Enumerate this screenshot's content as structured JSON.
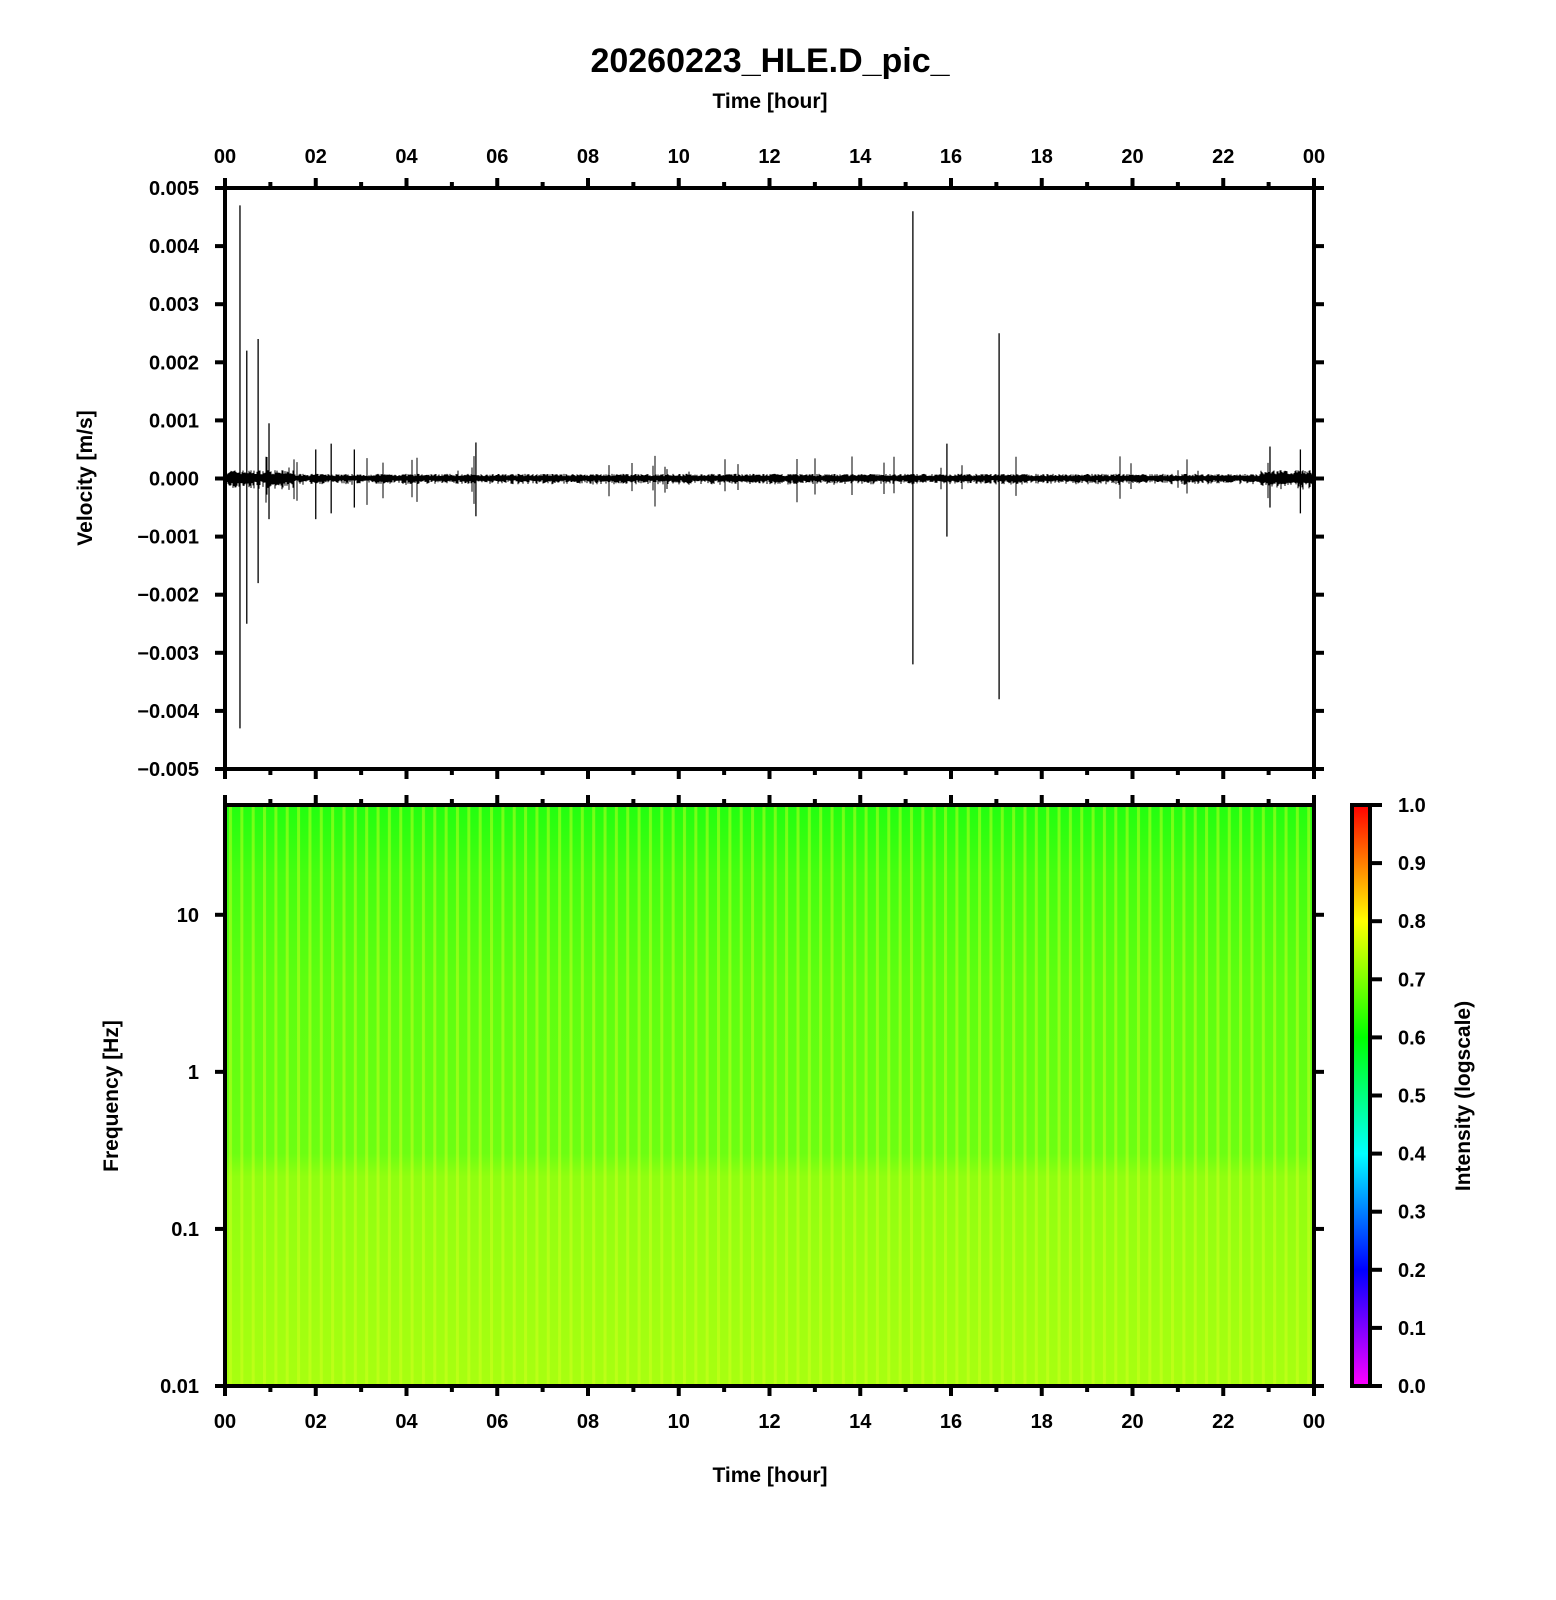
{
  "chart_data": [
    {
      "type": "line",
      "title": "20260223_HLE.D_pic_",
      "xlabel": "Time [hour]",
      "ylabel": "Velocity [m/s]",
      "xlim": [
        0,
        24
      ],
      "ylim": [
        -0.005,
        0.005
      ],
      "x_tick_labels": [
        "00",
        "02",
        "04",
        "06",
        "08",
        "10",
        "12",
        "14",
        "16",
        "18",
        "20",
        "22",
        "00"
      ],
      "y_tick_labels": [
        "0.005",
        "0.004",
        "0.003",
        "0.002",
        "0.001",
        "0.000",
        "−0.001",
        "−0.002",
        "−0.003",
        "−0.004",
        "−0.005"
      ],
      "y_ticks": [
        0.005,
        0.004,
        0.003,
        0.002,
        0.001,
        0,
        -0.001,
        -0.002,
        -0.003,
        -0.004,
        -0.005
      ],
      "grid": false,
      "line_color": "#000000",
      "events": [
        {
          "hour": 0.33,
          "max": 0.0047,
          "min": -0.0043
        },
        {
          "hour": 0.48,
          "max": 0.0022,
          "min": -0.0025
        },
        {
          "hour": 0.73,
          "max": 0.0024,
          "min": -0.0018
        },
        {
          "hour": 0.97,
          "max": 0.00095,
          "min": -0.0007
        },
        {
          "hour": 2.0,
          "max": 0.0005,
          "min": -0.0007
        },
        {
          "hour": 2.34,
          "max": 0.0006,
          "min": -0.0006
        },
        {
          "hour": 2.85,
          "max": 0.0005,
          "min": -0.0005
        },
        {
          "hour": 5.53,
          "max": 0.00062,
          "min": -0.00065
        },
        {
          "hour": 15.16,
          "max": 0.0046,
          "min": -0.0032
        },
        {
          "hour": 15.91,
          "max": 0.0006,
          "min": -0.001
        },
        {
          "hour": 17.06,
          "max": 0.0025,
          "min": -0.0038
        },
        {
          "hour": 23.03,
          "max": 0.00055,
          "min": -0.0005
        },
        {
          "hour": 23.7,
          "max": 0.0005,
          "min": -0.0006
        }
      ]
    },
    {
      "type": "heatmap",
      "xlabel": "Time [hour]",
      "ylabel": "Frequency [Hz]",
      "xlim": [
        0,
        24
      ],
      "ylim": [
        0.01,
        50
      ],
      "y_scale": "log",
      "y_ticks": [
        10,
        1,
        0.1,
        0.01
      ],
      "y_tick_labels": [
        "10",
        "1",
        "0.1",
        "0.01"
      ],
      "x_tick_labels": [
        "00",
        "02",
        "04",
        "06",
        "08",
        "10",
        "12",
        "14",
        "16",
        "18",
        "20",
        "22",
        "00"
      ],
      "intensity_bands": [
        {
          "freq_range": [
            10,
            50
          ],
          "intensity": 0.62
        },
        {
          "freq_range": [
            0.3,
            10
          ],
          "intensity": 0.66
        },
        {
          "freq_range": [
            0.01,
            0.3
          ],
          "intensity": 0.72
        }
      ],
      "colorbar": {
        "label": "Intensity (logscale)",
        "range": [
          0,
          1
        ],
        "tick_labels": [
          "1.0",
          "0.9",
          "0.8",
          "0.7",
          "0.6",
          "0.5",
          "0.4",
          "0.3",
          "0.2",
          "0.1",
          "0.0"
        ],
        "colors": {
          "0.0": "#ff00ff",
          "0.2": "#0000ff",
          "0.4": "#00ffff",
          "0.6": "#00ff00",
          "0.8": "#ffff00",
          "1.0": "#ff0000"
        }
      }
    }
  ]
}
